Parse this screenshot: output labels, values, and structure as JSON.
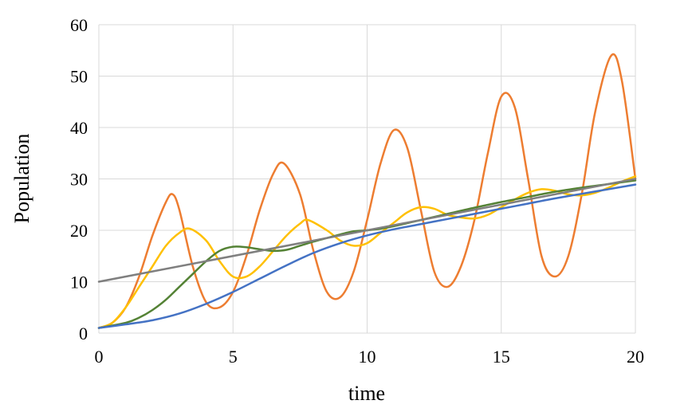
{
  "chart_data": {
    "type": "line",
    "title": "",
    "xlabel": "time",
    "ylabel": "Population",
    "xlim": [
      0,
      20
    ],
    "ylim": [
      0,
      60
    ],
    "x_ticks": [
      0,
      5,
      10,
      15,
      20
    ],
    "y_ticks": [
      0,
      10,
      20,
      30,
      40,
      50,
      60
    ],
    "grid": true,
    "legend": "none",
    "series": [
      {
        "color": "#ed7d31",
        "x": [
          0,
          0.5,
          1,
          1.5,
          2,
          2.5,
          2.75,
          3,
          3.5,
          4,
          4.5,
          5,
          5.5,
          6,
          6.5,
          6.9,
          7.5,
          8,
          8.5,
          9,
          9.5,
          10,
          10.5,
          11,
          11.5,
          12,
          12.5,
          13,
          13.5,
          14,
          14.5,
          15,
          15.5,
          16,
          16.5,
          17,
          17.5,
          18,
          18.5,
          19.1,
          19.5,
          20
        ],
        "y": [
          1,
          2,
          5,
          11,
          19,
          25.5,
          27,
          24,
          13,
          6,
          5,
          8,
          15,
          24,
          31,
          33,
          27,
          16,
          8,
          7,
          12,
          22,
          33,
          39.5,
          36,
          24,
          12,
          9,
          13,
          22,
          35,
          46,
          44,
          30,
          15,
          11,
          15,
          27,
          43,
          54,
          49,
          30
        ]
      },
      {
        "color": "#ffc000",
        "x": [
          0,
          0.5,
          1,
          1.5,
          2,
          2.5,
          3,
          3.4,
          4,
          4.5,
          5,
          5.5,
          6,
          6.5,
          7,
          7.5,
          7.8,
          8.5,
          9,
          9.5,
          10,
          10.5,
          11,
          11.5,
          12,
          12.5,
          13,
          13.5,
          14,
          14.5,
          15,
          15.5,
          16,
          16.5,
          17,
          17.5,
          18,
          18.5,
          19,
          19.5,
          20
        ],
        "y": [
          1,
          2,
          5,
          9,
          13,
          17,
          19.5,
          20.3,
          18,
          14,
          11,
          11,
          13,
          16,
          19,
          21.3,
          22,
          20,
          18,
          17,
          17.5,
          19.5,
          21.5,
          23.5,
          24.5,
          24.2,
          23,
          22.5,
          22.3,
          23,
          24.5,
          26,
          27.3,
          28,
          27.7,
          27,
          26.8,
          27.3,
          28.3,
          29.5,
          30.5
        ]
      },
      {
        "color": "#548235",
        "x": [
          0,
          1,
          1.5,
          2,
          2.5,
          3,
          3.5,
          4,
          4.5,
          5,
          5.5,
          6,
          6.5,
          7,
          7.5,
          8,
          8.5,
          9,
          9.5,
          10,
          10.5,
          11,
          12,
          13,
          14,
          15,
          16,
          17,
          18,
          19,
          20
        ],
        "y": [
          1,
          2,
          3,
          4.5,
          6.5,
          9,
          11.5,
          14,
          16,
          16.8,
          16.7,
          16.3,
          16,
          16.2,
          17,
          17.8,
          18.5,
          19.2,
          19.8,
          20,
          20.3,
          20.8,
          22,
          23.2,
          24.4,
          25.5,
          26.5,
          27.5,
          28.3,
          29,
          29.7
        ]
      },
      {
        "color": "#4472c4",
        "x": [
          0,
          1,
          2,
          3,
          4,
          5,
          6,
          7,
          8,
          9,
          10,
          11,
          12,
          13,
          14,
          15,
          16,
          17,
          18,
          19,
          20
        ],
        "y": [
          1,
          1.7,
          2.5,
          3.8,
          5.7,
          8,
          10.6,
          13.2,
          15.6,
          17.5,
          19,
          20.2,
          21.2,
          22.2,
          23.2,
          24.2,
          25.2,
          26.2,
          27.1,
          28,
          28.9
        ]
      },
      {
        "color": "#7f7f7f",
        "x": [
          0,
          20
        ],
        "y": [
          10,
          30
        ]
      }
    ]
  }
}
